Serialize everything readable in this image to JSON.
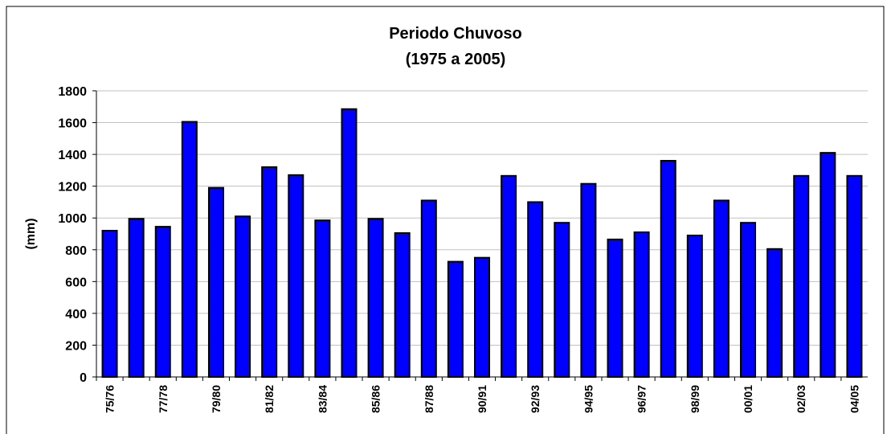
{
  "chart_data": {
    "type": "bar",
    "title": "Periodo Chuvoso",
    "subtitle": "(1975 a 2005)",
    "ylabel": "(mm)",
    "categories": [
      "75/76",
      null,
      "77/78",
      null,
      "79/80",
      null,
      "81/82",
      null,
      "83/84",
      null,
      "85/86",
      null,
      "87/88",
      null,
      "90/91",
      null,
      "92/93",
      null,
      "94/95",
      null,
      "96/97",
      null,
      "98/99",
      null,
      "00/01",
      null,
      "02/03",
      null,
      "04/05"
    ],
    "values": [
      920,
      995,
      945,
      1605,
      1190,
      1010,
      1320,
      1270,
      985,
      1685,
      995,
      905,
      1110,
      725,
      750,
      1265,
      1100,
      970,
      1215,
      865,
      910,
      1360,
      890,
      1110,
      970,
      805,
      1265,
      1410,
      1265
    ],
    "color": "#0000ff",
    "ylim": [
      0,
      1800
    ],
    "yticks": [
      0,
      200,
      400,
      600,
      800,
      1000,
      1200,
      1400,
      1600,
      1800
    ],
    "grid": true
  }
}
